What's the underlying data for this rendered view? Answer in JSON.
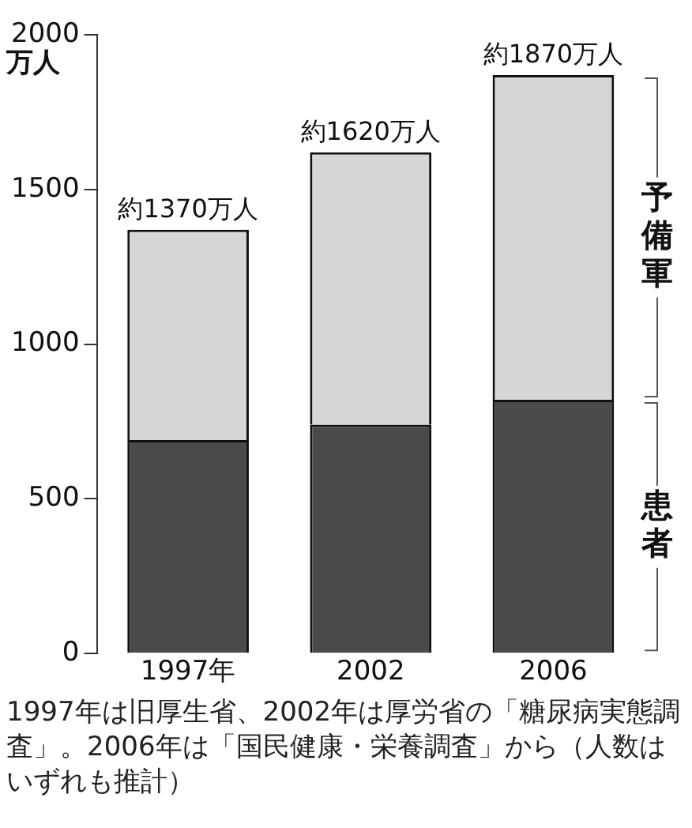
{
  "chart_data": {
    "type": "bar",
    "stacked": true,
    "ylabel": "万人",
    "categories": [
      "1997年",
      "2002",
      "2006"
    ],
    "series": [
      {
        "name": "患者",
        "color": "#4a4a4a",
        "values": [
          690,
          740,
          820
        ]
      },
      {
        "name": "予備軍",
        "color": "#d6d6d6",
        "values": [
          680,
          880,
          1050
        ]
      }
    ],
    "totals": [
      "約1370万人",
      "約1620万人",
      "約1870万人"
    ],
    "ylim": [
      0,
      2000
    ],
    "yticks": [
      0,
      500,
      1000,
      1500,
      2000
    ],
    "grid": false,
    "legend": false,
    "annotations": [
      "1997年は旧厚生省、2002年は厚労省の「糖尿病実態調査」。2006年は「国民健康・栄養調査」から（人数はいずれも推計）"
    ]
  }
}
